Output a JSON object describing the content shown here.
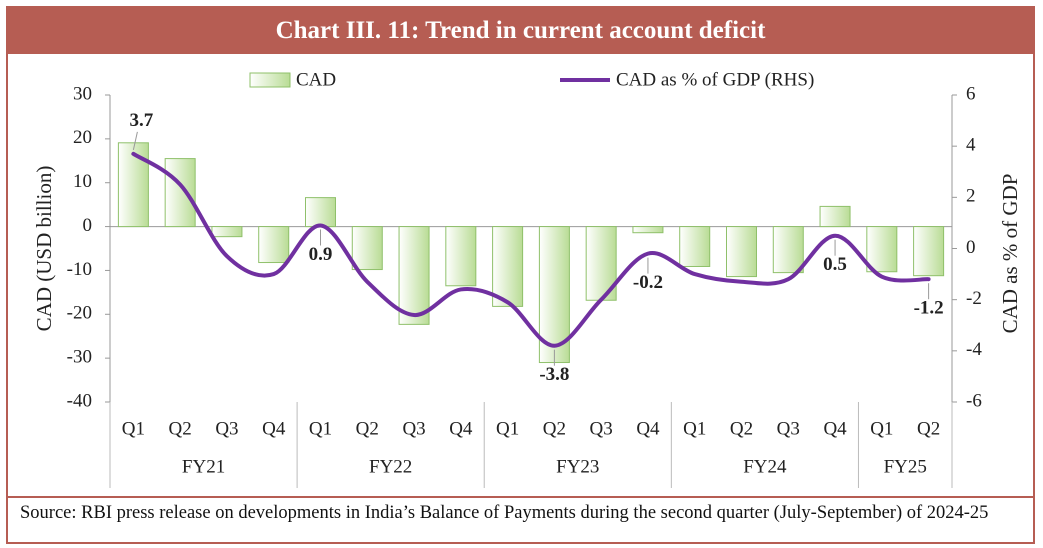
{
  "chart_data": {
    "type": "bar-line",
    "title": "Chart III. 11: Trend in current account deficit",
    "groups": [
      {
        "label": "FY21",
        "categories": [
          "Q1",
          "Q2",
          "Q3",
          "Q4"
        ]
      },
      {
        "label": "FY22",
        "categories": [
          "Q1",
          "Q2",
          "Q3",
          "Q4"
        ]
      },
      {
        "label": "FY23",
        "categories": [
          "Q1",
          "Q2",
          "Q3",
          "Q4"
        ]
      },
      {
        "label": "FY24",
        "categories": [
          "Q1",
          "Q2",
          "Q3",
          "Q4"
        ]
      },
      {
        "label": "FY25",
        "categories": [
          "Q1",
          "Q2"
        ]
      }
    ],
    "series": [
      {
        "name": "CAD",
        "type": "bar",
        "color": "#d3eabb",
        "values": [
          19.1,
          15.5,
          -2.3,
          -8.2,
          6.6,
          -9.8,
          -22.3,
          -13.5,
          -18.2,
          -31.0,
          -16.8,
          -1.4,
          -9.1,
          -11.4,
          -10.5,
          4.6,
          -10.3,
          -11.2
        ]
      },
      {
        "name": "CAD as % of GDP (RHS)",
        "type": "line",
        "axis": "y2",
        "color": "#7030a0",
        "values": [
          3.7,
          2.5,
          -0.3,
          -1.0,
          0.9,
          -1.3,
          -2.6,
          -1.6,
          -2.1,
          -3.8,
          -2.0,
          -0.2,
          -1.0,
          -1.3,
          -1.2,
          0.5,
          -1.1,
          -1.2
        ],
        "value_labels": [
          "3.7",
          null,
          null,
          null,
          "0.9",
          null,
          null,
          null,
          null,
          "-3.8",
          null,
          "-0.2",
          null,
          null,
          null,
          "0.5",
          null,
          "-1.2"
        ]
      }
    ],
    "ylabel": "CAD (USD billion)",
    "y2label": "CAD as % of GDP",
    "ylim": [
      -40,
      30
    ],
    "yticks": [
      -40,
      -30,
      -20,
      -10,
      0,
      10,
      20,
      30
    ],
    "y2lim": [
      -6,
      6
    ],
    "y2ticks": [
      -6,
      -4,
      -2,
      0,
      2,
      4,
      6
    ],
    "source": "Source: RBI press release on developments in India’s Balance of Payments during the second quarter (July-September) of 2024-25"
  }
}
